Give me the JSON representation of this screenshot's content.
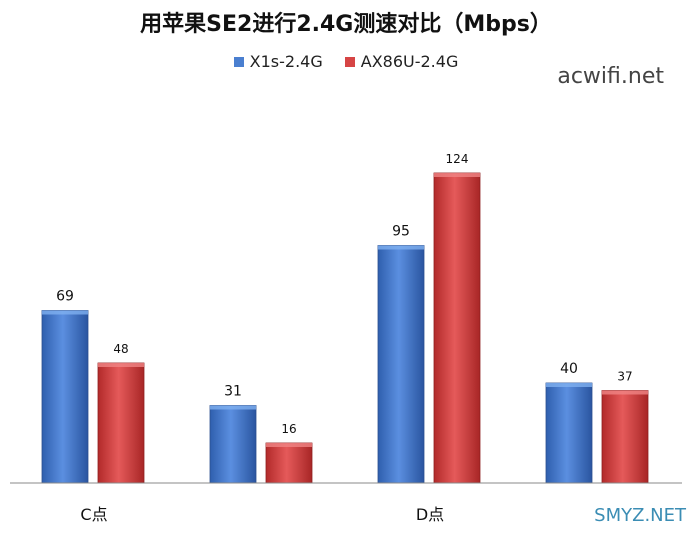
{
  "chart_data": {
    "type": "bar",
    "title": "用苹果SE2进行2.4G测速对比（Mbps）",
    "categories": [
      "C点",
      "",
      "D点",
      ""
    ],
    "series": [
      {
        "name": "X1s-2.4G",
        "values": [
          69,
          31,
          95,
          40
        ],
        "color": "#4a7fd0"
      },
      {
        "name": "AX86U-2.4G",
        "values": [
          48,
          16,
          124,
          37
        ],
        "color": "#d64545"
      }
    ],
    "xlabel": "",
    "ylabel": "",
    "ylim": [
      0,
      160
    ],
    "grid": false,
    "legend_position": "top-center"
  },
  "watermarks": {
    "top_right": "acwifi.net",
    "bottom_right": "SMYZ.NET"
  }
}
